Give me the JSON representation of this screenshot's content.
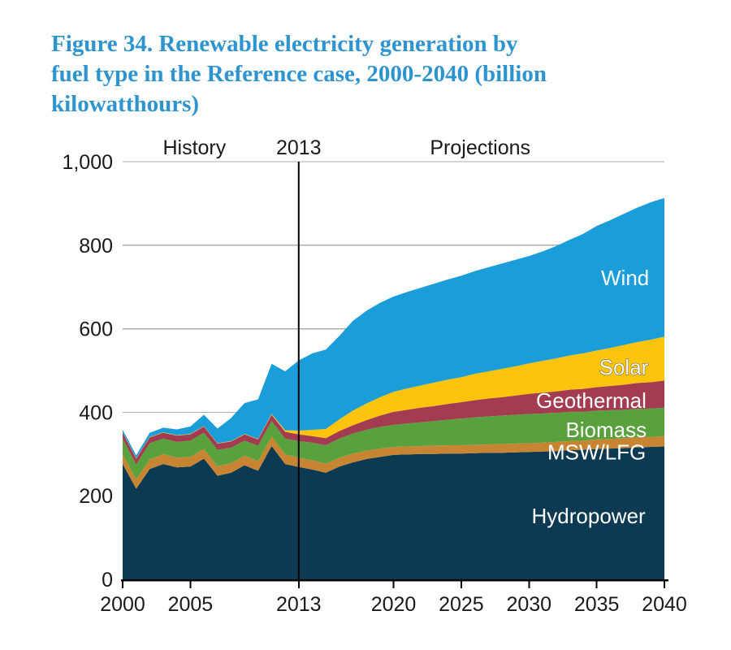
{
  "figure": {
    "title_text": "Figure 34. Renewable electricity generation by fuel type in the Reference case, 2000-2040 (billion kilowatthours)",
    "title_lines": [
      "Figure 34. Renewable electricity generation by",
      "fuel type in the Reference case, 2000-2040 (billion",
      "kilowatthours)"
    ],
    "title_color": "#2E94D0"
  },
  "chart_data": {
    "type": "area",
    "stacked": true,
    "title": "Renewable electricity generation by fuel type in the Reference case, 2000-2040",
    "units": "billion kilowatthours",
    "grid": true,
    "grid_color": "#ADADAD",
    "axis_color": "#000000",
    "label_color": "#1A1A1A",
    "x": [
      2000,
      2001,
      2002,
      2003,
      2004,
      2005,
      2006,
      2007,
      2008,
      2009,
      2010,
      2011,
      2012,
      2013,
      2014,
      2015,
      2016,
      2017,
      2018,
      2019,
      2020,
      2021,
      2022,
      2023,
      2024,
      2025,
      2026,
      2027,
      2028,
      2029,
      2030,
      2031,
      2032,
      2033,
      2034,
      2035,
      2036,
      2037,
      2038,
      2039,
      2040
    ],
    "x_axis": {
      "ticks": [
        2000,
        2005,
        2013,
        2020,
        2025,
        2030,
        2035,
        2040
      ],
      "tick_labels": [
        "2000",
        "2005",
        "2013",
        "2020",
        "2025",
        "2030",
        "2035",
        "2040"
      ]
    },
    "y_axis": {
      "max": 1000,
      "ticks": [
        0,
        200,
        400,
        600,
        800,
        1000
      ],
      "tick_labels": [
        "0",
        "200",
        "400",
        "600",
        "800",
        "1,000"
      ]
    },
    "series": [
      {
        "name": "Hydropower",
        "color": "#0D3A53",
        "values": [
          276,
          217,
          264,
          276,
          268,
          270,
          289,
          248,
          255,
          273,
          260,
          319,
          276,
          269,
          263,
          255,
          270,
          280,
          288,
          293,
          298,
          299,
          300,
          300,
          301,
          301,
          302,
          303,
          303,
          304,
          305,
          306,
          307,
          309,
          310,
          312,
          313,
          314,
          316,
          317,
          318
        ]
      },
      {
        "name": "MSW/LFG",
        "color": "#C78533",
        "values": [
          23,
          23,
          23,
          24,
          23,
          23,
          23,
          23,
          23,
          23,
          23,
          23,
          23,
          22,
          22,
          22,
          21,
          21,
          20,
          20,
          19,
          19,
          19,
          20,
          20,
          20,
          20,
          20,
          21,
          21,
          21,
          21,
          22,
          22,
          22,
          23,
          23,
          24,
          24,
          24,
          25
        ]
      },
      {
        "name": "Biomass",
        "color": "#59A13C",
        "values": [
          38,
          35,
          39,
          37,
          38,
          39,
          39,
          39,
          37,
          36,
          37,
          37,
          38,
          40,
          42,
          44,
          46,
          48,
          50,
          52,
          53,
          55,
          57,
          59,
          61,
          64,
          66,
          67,
          68,
          69,
          70,
          70,
          70,
          70,
          69,
          69,
          69,
          68,
          68,
          68,
          68
        ]
      },
      {
        "name": "Geothermal",
        "color": "#A33C50",
        "values": [
          14,
          14,
          14,
          14,
          15,
          15,
          15,
          15,
          15,
          15,
          15,
          15,
          16,
          16,
          16,
          17,
          18,
          20,
          23,
          27,
          31,
          33,
          35,
          36,
          38,
          39,
          41,
          43,
          44,
          46,
          48,
          50,
          51,
          53,
          55,
          56,
          58,
          60,
          62,
          63,
          65
        ]
      },
      {
        "name": "Solar",
        "color": "#FDC40D",
        "values": [
          1,
          1,
          1,
          1,
          1,
          1,
          1,
          1,
          1,
          1,
          1,
          2,
          4,
          9,
          15,
          22,
          28,
          35,
          40,
          44,
          48,
          51,
          53,
          56,
          58,
          60,
          63,
          65,
          68,
          70,
          73,
          76,
          79,
          82,
          85,
          88,
          91,
          95,
          98,
          102,
          105
        ]
      },
      {
        "name": "Wind",
        "color": "#1A9DD9",
        "values": [
          6,
          7,
          10,
          11,
          14,
          18,
          27,
          35,
          55,
          74,
          95,
          120,
          141,
          168,
          183,
          190,
          200,
          215,
          222,
          226,
          228,
          231,
          234,
          237,
          240,
          243,
          246,
          249,
          252,
          255,
          257,
          262,
          269,
          277,
          286,
          298,
          306,
          314,
          322,
          329,
          332
        ]
      }
    ],
    "annotations": {
      "divider_year": 2013,
      "header_labels": [
        {
          "text": "History",
          "year": 2005.3
        },
        {
          "text": "2013",
          "year": 2013
        },
        {
          "text": "Projections",
          "year": 2026.4
        }
      ],
      "area_labels": [
        {
          "text": "Wind",
          "year": 2037.1,
          "value": 722,
          "outlined": false
        },
        {
          "text": "Solar",
          "year": 2037.0,
          "value": 508,
          "outlined": true
        },
        {
          "text": "Geothermal",
          "year": 2034.6,
          "value": 428,
          "outlined": false
        },
        {
          "text": "Biomass",
          "year": 2035.7,
          "value": 358,
          "outlined": false
        },
        {
          "text": "MSW/LFG",
          "year": 2035.0,
          "value": 304,
          "outlined": false
        },
        {
          "text": "Hydropower",
          "year": 2034.4,
          "value": 152,
          "outlined": false
        }
      ]
    }
  }
}
